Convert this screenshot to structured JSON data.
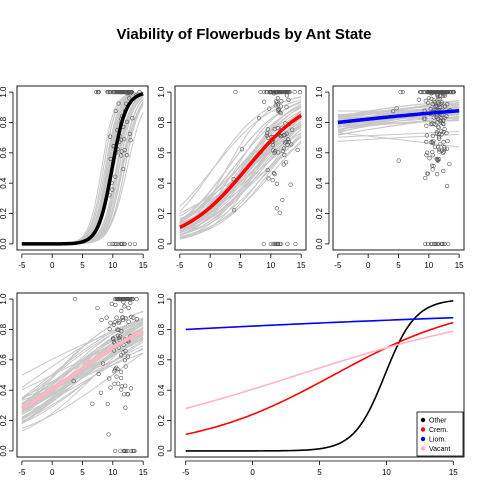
{
  "title": "Viability of Flowerbuds by Ant State",
  "chart_data": [
    {
      "id": "other",
      "type": "scatter",
      "xlim": [
        -5,
        15
      ],
      "ylim": [
        0,
        1
      ],
      "xticks": [
        -5,
        0,
        5,
        10,
        15
      ],
      "yticks": [
        0.0,
        0.2,
        0.4,
        0.6,
        0.8,
        1.0
      ],
      "xticklabels": [
        "-5",
        "0",
        "5",
        "10",
        "15"
      ],
      "yticklabels": [
        "0.0",
        "0.2",
        "0.4",
        "0.6",
        "0.8",
        "1.0"
      ],
      "fit": {
        "color": "#000000",
        "intercept": -8.6,
        "slope": 0.87
      },
      "band": {
        "color": "#c8c8c8",
        "count": 40,
        "intercept_sd": 0.7,
        "slope_sd": 0.06
      },
      "points": {
        "x_center": 11.5,
        "x_spread": 2.0,
        "n": 110,
        "top_cluster": 0.4,
        "bottom_cluster": 0.08
      }
    },
    {
      "id": "crem",
      "type": "scatter",
      "xlim": [
        -5,
        15
      ],
      "ylim": [
        0,
        1
      ],
      "xticks": [
        -5,
        0,
        5,
        10,
        15
      ],
      "yticks": [
        0.0,
        0.2,
        0.4,
        0.6,
        0.8,
        1.0
      ],
      "xticklabels": [
        "-5",
        "0",
        "5",
        "10",
        "15"
      ],
      "yticklabels": [
        "0.0",
        "0.2",
        "0.4",
        "0.6",
        "0.8",
        "1.0"
      ],
      "fit": {
        "color": "#ff0000",
        "intercept": -1.15,
        "slope": 0.19
      },
      "band": {
        "color": "#c8c8c8",
        "count": 45,
        "intercept_sd": 0.45,
        "slope_sd": 0.035
      },
      "points": {
        "x_center": 11.5,
        "x_spread": 2.2,
        "n": 140,
        "top_cluster": 0.3,
        "bottom_cluster": 0.08
      }
    },
    {
      "id": "liom",
      "type": "scatter",
      "xlim": [
        -5,
        15
      ],
      "ylim": [
        0,
        1
      ],
      "xticks": [
        -5,
        0,
        5,
        10,
        15
      ],
      "yticks": [
        0.0,
        0.2,
        0.4,
        0.6,
        0.8,
        1.0
      ],
      "xticklabels": [
        "-5",
        "0",
        "5",
        "10",
        "15"
      ],
      "yticklabels": [
        "0.0",
        "0.2",
        "0.4",
        "0.6",
        "0.8",
        "1.0"
      ],
      "fit": {
        "color": "#0000ff",
        "intercept": 1.53,
        "slope": 0.029
      },
      "band": {
        "color": "#c8c8c8",
        "count": 45,
        "intercept_sd": 0.28,
        "slope_sd": 0.02
      },
      "points": {
        "x_center": 11.5,
        "x_spread": 2.0,
        "n": 320,
        "top_cluster": 0.45,
        "bottom_cluster": 0.03
      }
    },
    {
      "id": "vacant",
      "type": "scatter",
      "xlim": [
        -5,
        15
      ],
      "ylim": [
        0,
        1
      ],
      "xticks": [
        -5,
        0,
        5,
        10,
        15
      ],
      "yticks": [
        0.0,
        0.2,
        0.4,
        0.6,
        0.8,
        1.0
      ],
      "xticklabels": [
        "-5",
        "0",
        "5",
        "10",
        "15"
      ],
      "yticklabels": [
        "0.0",
        "0.2",
        "0.4",
        "0.6",
        "0.8",
        "1.0"
      ],
      "fit": {
        "color": "#ffb6c1",
        "intercept": -0.38,
        "slope": 0.113
      },
      "band": {
        "color": "#c8c8c8",
        "count": 45,
        "intercept_sd": 0.35,
        "slope_sd": 0.03
      },
      "points": {
        "x_center": 11.5,
        "x_spread": 2.0,
        "n": 130,
        "top_cluster": 0.25,
        "bottom_cluster": 0.08
      }
    },
    {
      "id": "combined",
      "type": "line",
      "xlim": [
        -5,
        15
      ],
      "ylim": [
        0,
        1
      ],
      "xticks": [
        -5,
        0,
        5,
        10,
        15
      ],
      "yticks": [
        0.0,
        0.2,
        0.4,
        0.6,
        0.8,
        1.0
      ],
      "xticklabels": [
        "-5",
        "0",
        "5",
        "10",
        "15"
      ],
      "yticklabels": [
        "0.0",
        "0.2",
        "0.4",
        "0.6",
        "0.8",
        "1.0"
      ],
      "legend_placement": "bottom-right",
      "series": [
        {
          "name": "Other",
          "color": "#000000",
          "intercept": -8.6,
          "slope": 0.87
        },
        {
          "name": "Crem.",
          "color": "#ff0000",
          "intercept": -1.15,
          "slope": 0.19
        },
        {
          "name": "Liom.",
          "color": "#0000ff",
          "intercept": 1.53,
          "slope": 0.029
        },
        {
          "name": "Vacant",
          "color": "#ffb6c1",
          "intercept": -0.38,
          "slope": 0.113
        }
      ]
    }
  ]
}
